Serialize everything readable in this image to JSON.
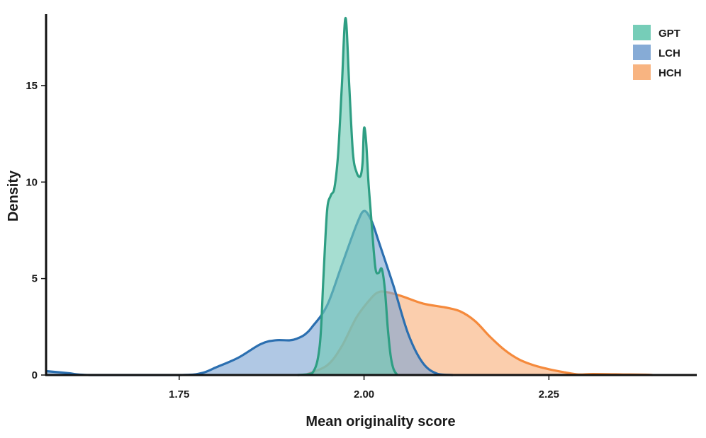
{
  "chart_data": {
    "type": "area",
    "xlabel": "Mean originality score",
    "ylabel": "Density",
    "xlim": [
      1.57,
      2.45
    ],
    "ylim": [
      0,
      18.7
    ],
    "xticks": [
      1.75,
      2.0,
      2.25
    ],
    "xtick_labels": [
      "1.75",
      "2.00",
      "2.25"
    ],
    "yticks": [
      0,
      5,
      10,
      15
    ],
    "ytick_labels": [
      "0",
      "5",
      "10",
      "15"
    ],
    "grid": false,
    "legend_position": "top-right",
    "series": [
      {
        "name": "GPT",
        "color": "#2e9e83",
        "fill": "#6fcab4",
        "points": [
          [
            1.91,
            0
          ],
          [
            1.93,
            0.1
          ],
          [
            1.94,
            1.5
          ],
          [
            1.945,
            5
          ],
          [
            1.95,
            8.5
          ],
          [
            1.955,
            9.3
          ],
          [
            1.96,
            9.7
          ],
          [
            1.965,
            11.5
          ],
          [
            1.97,
            15
          ],
          [
            1.975,
            18.5
          ],
          [
            1.98,
            15
          ],
          [
            1.985,
            11.5
          ],
          [
            1.99,
            10.5
          ],
          [
            1.995,
            10.3
          ],
          [
            1.998,
            11
          ],
          [
            2.0,
            12.8
          ],
          [
            2.003,
            12
          ],
          [
            2.006,
            10
          ],
          [
            2.01,
            8
          ],
          [
            2.013,
            6.5
          ],
          [
            2.016,
            5.4
          ],
          [
            2.02,
            5.3
          ],
          [
            2.024,
            5.5
          ],
          [
            2.028,
            4.5
          ],
          [
            2.032,
            2.5
          ],
          [
            2.036,
            1
          ],
          [
            2.04,
            0.3
          ],
          [
            2.045,
            0
          ]
        ]
      },
      {
        "name": "LCH",
        "color": "#2b6fb0",
        "fill": "#7fa7d4",
        "points": [
          [
            1.57,
            0.2
          ],
          [
            1.6,
            0.1
          ],
          [
            1.63,
            0
          ],
          [
            1.75,
            0
          ],
          [
            1.78,
            0.1
          ],
          [
            1.8,
            0.4
          ],
          [
            1.83,
            0.9
          ],
          [
            1.86,
            1.6
          ],
          [
            1.88,
            1.8
          ],
          [
            1.9,
            1.8
          ],
          [
            1.91,
            1.9
          ],
          [
            1.92,
            2.1
          ],
          [
            1.93,
            2.5
          ],
          [
            1.95,
            3.6
          ],
          [
            1.97,
            5.7
          ],
          [
            1.99,
            7.8
          ],
          [
            2.0,
            8.5
          ],
          [
            2.01,
            8.0
          ],
          [
            2.02,
            6.9
          ],
          [
            2.04,
            4.6
          ],
          [
            2.06,
            2.1
          ],
          [
            2.08,
            0.6
          ],
          [
            2.1,
            0.05
          ],
          [
            2.12,
            0
          ]
        ]
      },
      {
        "name": "HCH",
        "color": "#f58a3c",
        "fill": "#f8b07a",
        "points": [
          [
            1.92,
            0
          ],
          [
            1.95,
            0.5
          ],
          [
            1.97,
            1.5
          ],
          [
            1.99,
            3.0
          ],
          [
            2.01,
            4.0
          ],
          [
            2.02,
            4.3
          ],
          [
            2.03,
            4.3
          ],
          [
            2.05,
            4.1
          ],
          [
            2.08,
            3.7
          ],
          [
            2.11,
            3.5
          ],
          [
            2.13,
            3.3
          ],
          [
            2.15,
            2.8
          ],
          [
            2.17,
            2.0
          ],
          [
            2.19,
            1.3
          ],
          [
            2.21,
            0.8
          ],
          [
            2.23,
            0.5
          ],
          [
            2.25,
            0.3
          ],
          [
            2.27,
            0.15
          ],
          [
            2.29,
            0.03
          ],
          [
            2.31,
            0.05
          ],
          [
            2.35,
            0.03
          ],
          [
            2.38,
            0.02
          ],
          [
            2.39,
            0
          ]
        ]
      }
    ]
  }
}
